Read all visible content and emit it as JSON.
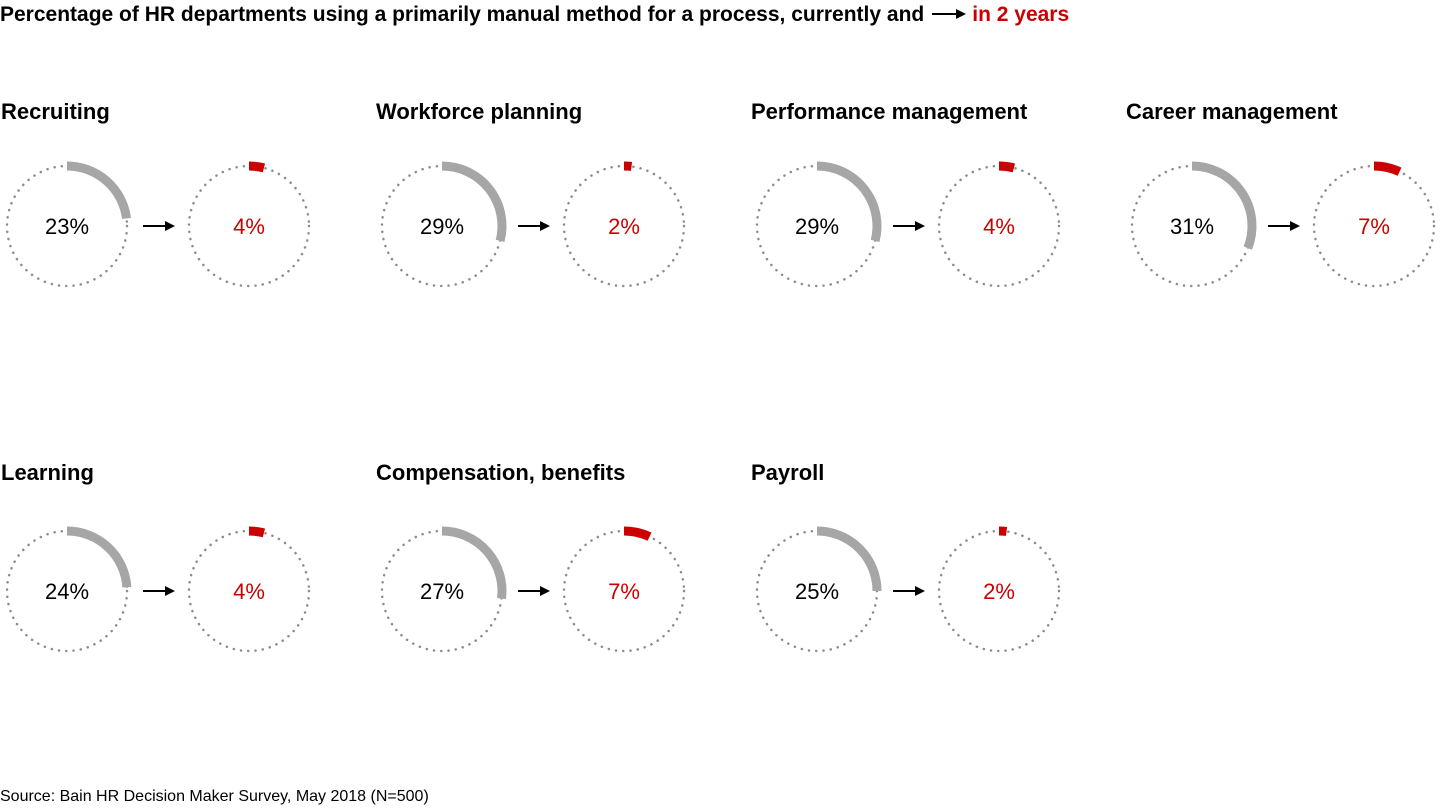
{
  "title": {
    "prefix": "Percentage of HR departments using a primarily manual method for a process, currently and",
    "future_label": "in 2 years"
  },
  "source": "Source: Bain HR Decision Maker Survey, May 2018 (N=500)",
  "colors": {
    "current": "#a6a6a6",
    "future": "#cc0000",
    "ring": "#8c8c8c",
    "text": "#000000"
  },
  "chart_data": {
    "type": "donut",
    "unit": "%",
    "series": [
      {
        "name": "currently",
        "color": "#a6a6a6"
      },
      {
        "name": "in 2 years",
        "color": "#cc0000"
      }
    ],
    "categories": [
      {
        "label": "Recruiting",
        "current": 23,
        "future": 4
      },
      {
        "label": "Workforce planning",
        "current": 29,
        "future": 2
      },
      {
        "label": "Performance management",
        "current": 29,
        "future": 4
      },
      {
        "label": "Career management",
        "current": 31,
        "future": 7
      },
      {
        "label": "Learning",
        "current": 24,
        "future": 4
      },
      {
        "label": "Compensation, benefits",
        "current": 27,
        "future": 7
      },
      {
        "label": "Payroll",
        "current": 25,
        "future": 2
      }
    ]
  }
}
